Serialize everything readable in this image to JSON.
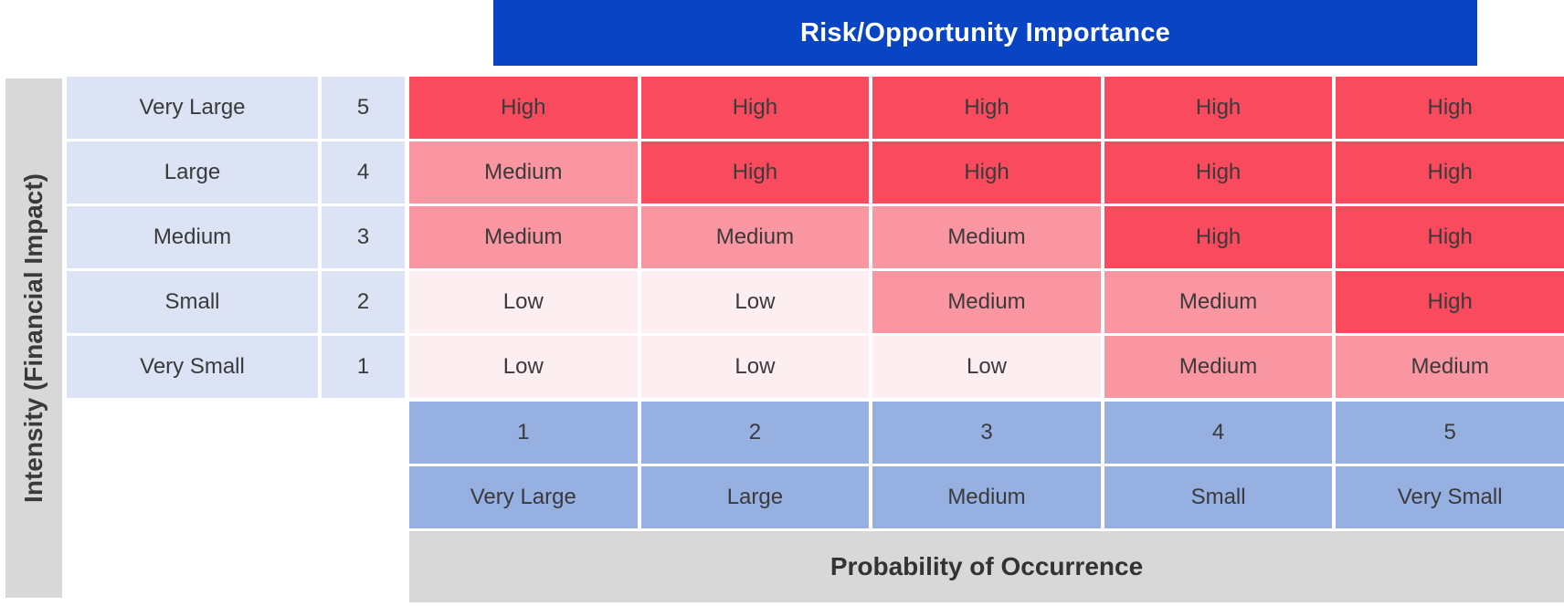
{
  "chart_data": {
    "type": "heatmap",
    "title": "Risk/Opportunity Importance",
    "xlabel": "Probability of Occurrence",
    "ylabel": "Intensity (Financial Impact)",
    "y_categories": [
      {
        "label": "Very Large",
        "value": "5"
      },
      {
        "label": "Large",
        "value": "4"
      },
      {
        "label": "Medium",
        "value": "3"
      },
      {
        "label": "Small",
        "value": "2"
      },
      {
        "label": "Very Small",
        "value": "1"
      }
    ],
    "x_categories": [
      {
        "value": "1",
        "label": "Very Large"
      },
      {
        "value": "2",
        "label": "Large"
      },
      {
        "value": "3",
        "label": "Medium"
      },
      {
        "value": "4",
        "label": "Small"
      },
      {
        "value": "5",
        "label": "Very Small"
      }
    ],
    "values": [
      [
        "High",
        "High",
        "High",
        "High",
        "High"
      ],
      [
        "Medium",
        "High",
        "High",
        "High",
        "High"
      ],
      [
        "Medium",
        "Medium",
        "Medium",
        "High",
        "High"
      ],
      [
        "Low",
        "Low",
        "Medium",
        "Medium",
        "High"
      ],
      [
        "Low",
        "Low",
        "Low",
        "Medium",
        "Medium"
      ]
    ],
    "legend": "none",
    "grid": false,
    "color_map": {
      "High": "#fa4b5e",
      "Medium": "#fa96a2",
      "Low": "#fdeef1"
    }
  },
  "colors": {
    "title_bg": "#0844c4",
    "title_text": "#ffffff",
    "high": "#fa4b5e",
    "medium": "#fa96a2",
    "low": "#fdeef1",
    "row_header_bg": "#dbe3f4",
    "col_header_bg": "#96b0e2",
    "axis_bar_bg": "#d8d8d8",
    "cell_text": "#3a3a3a"
  }
}
